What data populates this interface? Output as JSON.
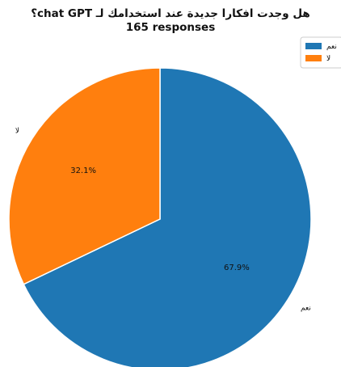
{
  "chart_data": {
    "type": "pie",
    "title": "هل وجدت افكارا جديدة عند استخدامك لـ chat GPT؟",
    "subtitle": "165 responses",
    "categories": [
      "نعم",
      "لا"
    ],
    "values": [
      67.9,
      32.1
    ],
    "value_labels": [
      "67.9%",
      "32.1%"
    ],
    "colors": [
      "#1f77b4",
      "#ff7f0e"
    ],
    "start_angle_deg": 90,
    "direction": "clockwise",
    "legend": {
      "placement": "top-right",
      "entries": [
        "نعم",
        "لا"
      ]
    }
  }
}
